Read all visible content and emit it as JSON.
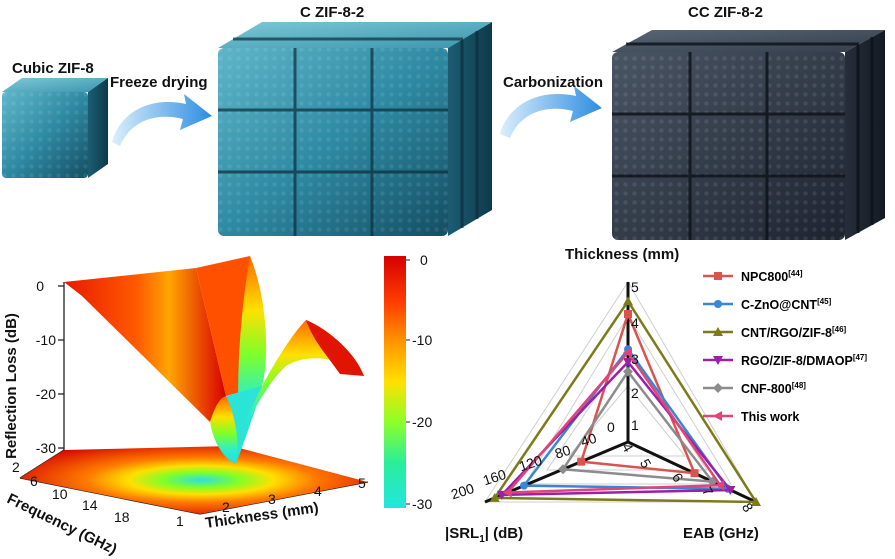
{
  "top": {
    "stage1": "Cubic ZIF-8",
    "arrow1": "Freeze drying",
    "stage2": "C ZIF-8-2",
    "arrow2": "Carbonization",
    "stage3": "CC ZIF-8-2"
  },
  "surface_plot": {
    "z_label": "Reflection Loss (dB)",
    "z_ticks": [
      "0",
      "-10",
      "-20",
      "-30"
    ],
    "freq_label": "Frequency (GHz)",
    "freq_ticks": [
      "2",
      "6",
      "10",
      "14",
      "18"
    ],
    "thick_label": "Thickness (mm)",
    "thick_ticks": [
      "1",
      "2",
      "3",
      "4",
      "5"
    ],
    "colorbar_ticks": [
      "0",
      "-10",
      "-20",
      "-30"
    ],
    "colorbar_colors": [
      "#d40000",
      "#ff6a00",
      "#ffd600",
      "#7dff2a",
      "#22e6d0"
    ]
  },
  "radar": {
    "axis_top": "Thickness (mm)",
    "axis_left": "|SRL",
    "axis_left_sub": "1",
    "axis_left_unit": "| (dB)",
    "axis_right": "EAB (GHz)",
    "thickness_ticks": [
      "0",
      "1",
      "2",
      "3",
      "4",
      "5"
    ],
    "srl_ticks": [
      "40",
      "80",
      "120",
      "160",
      "200"
    ],
    "eab_ticks": [
      "4",
      "5",
      "6",
      "7",
      "8"
    ],
    "series": [
      {
        "name": "NPC800",
        "ref": "[44]",
        "color": "#d9534f",
        "marker": "square",
        "thickness": 4.0,
        "srl": 72,
        "eab": 5.6
      },
      {
        "name": "C-ZnO@CNT",
        "ref": "[45]",
        "color": "#3a86d6",
        "marker": "circle",
        "thickness": 2.9,
        "srl": 160,
        "eab": 6.9
      },
      {
        "name": "CNT/RGO/ZIF-8",
        "ref": "[46]",
        "color": "#7d7a1c",
        "marker": "triangle",
        "thickness": 4.4,
        "srl": 205,
        "eab": 8.0
      },
      {
        "name": "RGO/ZIF-8/DMAOP",
        "ref": "[47]",
        "color": "#9b1fa8",
        "marker": "triangle-down",
        "thickness": 2.5,
        "srl": 194,
        "eab": 7.0
      },
      {
        "name": "CNF-800",
        "ref": "[48]",
        "color": "#8c8c8c",
        "marker": "diamond",
        "thickness": 2.2,
        "srl": 100,
        "eab": 6.3
      },
      {
        "name": "This work",
        "ref": "",
        "color": "#e0457a",
        "marker": "triangle-left",
        "thickness": 2.8,
        "srl": 185,
        "eab": 6.6
      }
    ]
  }
}
